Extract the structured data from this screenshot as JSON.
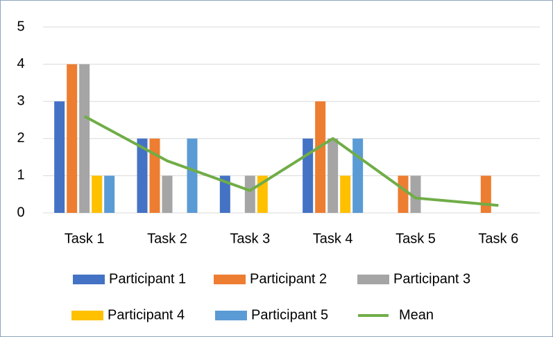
{
  "chart_data": {
    "type": "bar",
    "categories": [
      "Task 1",
      "Task 2",
      "Task 3",
      "Task 4",
      "Task 5",
      "Task 6"
    ],
    "series": [
      {
        "name": "Participant 1",
        "color": "#4472c4",
        "values": [
          3,
          2,
          1,
          2,
          0,
          0
        ]
      },
      {
        "name": "Participant 2",
        "color": "#ed7d31",
        "values": [
          4,
          2,
          0,
          3,
          1,
          1
        ]
      },
      {
        "name": "Participant 3",
        "color": "#a5a5a5",
        "values": [
          4,
          1,
          1,
          2,
          1,
          0
        ]
      },
      {
        "name": "Participant 4",
        "color": "#ffc000",
        "values": [
          1,
          0,
          1,
          1,
          0,
          0
        ]
      },
      {
        "name": "Participant 5",
        "color": "#5b9bd5",
        "values": [
          1,
          2,
          0,
          2,
          0,
          0
        ]
      },
      {
        "name": "Mean",
        "type": "line",
        "color": "#70ad47",
        "values": [
          2.6,
          1.4,
          0.6,
          2.0,
          0.4,
          0.2
        ]
      }
    ],
    "ylim": [
      0,
      5
    ],
    "yticks": [
      0,
      1,
      2,
      3,
      4,
      5
    ],
    "grid": true,
    "legend": "bottom"
  }
}
